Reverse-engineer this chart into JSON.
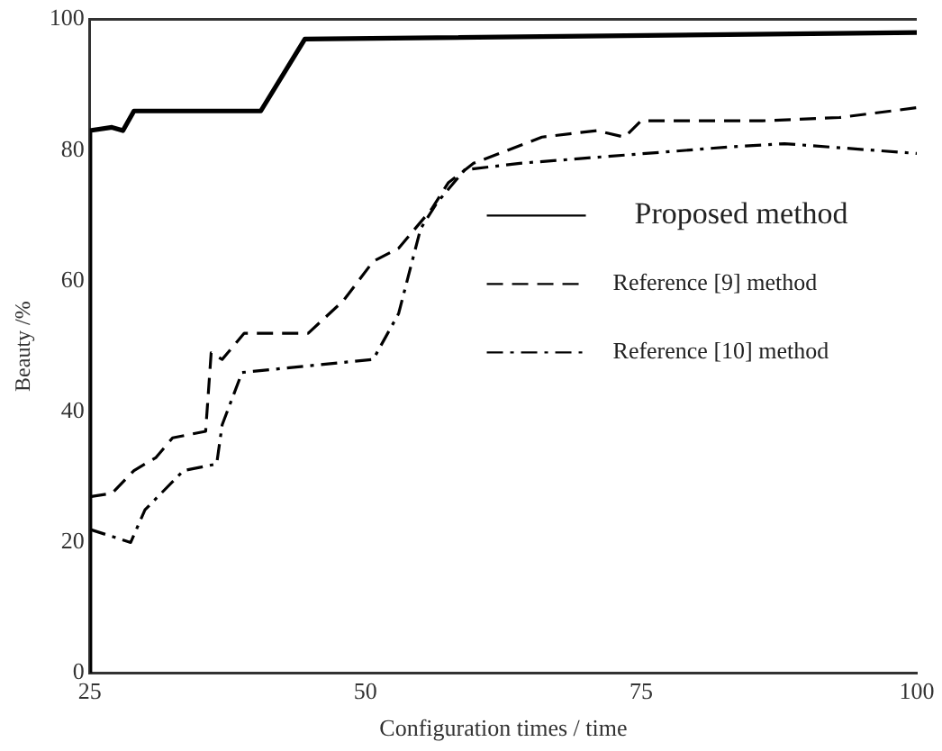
{
  "chart_data": {
    "type": "line",
    "xlabel": "Configuration times / time",
    "ylabel": "Beauty /%",
    "xlim": [
      25,
      100
    ],
    "xticks": [
      25,
      50,
      75,
      100
    ],
    "ylim": [
      0,
      100
    ],
    "yticks": [
      0,
      20,
      40,
      60,
      80,
      100
    ],
    "grid": false,
    "legend": "right",
    "marker": "none",
    "series": [
      {
        "name": "Proposed method",
        "color": "#000000",
        "line_style": "solid",
        "x": [
          25,
          25,
          27,
          28,
          29,
          40.5,
          44.5,
          100
        ],
        "values": [
          0,
          83,
          83.5,
          83,
          86,
          86,
          97,
          98
        ]
      },
      {
        "name": "Reference [9] method",
        "color": "#000000",
        "line_style": "dashed",
        "x": [
          25,
          27,
          29,
          31,
          32.5,
          35.5,
          36,
          37,
          39,
          44.8,
          48,
          50.7,
          53,
          56,
          57.5,
          59.8,
          66,
          71,
          73.5,
          75,
          86,
          93,
          100
        ],
        "values": [
          27,
          27.5,
          31,
          33,
          36,
          37,
          49,
          48,
          52,
          52,
          57,
          63,
          65,
          71,
          75,
          78,
          82,
          83,
          82,
          84.5,
          84.5,
          85,
          86.5
        ]
      },
      {
        "name": "Reference [10] method",
        "color": "#000000",
        "line_style": "dashdot",
        "x": [
          25,
          28.7,
          30,
          33.5,
          36.5,
          37,
          38.8,
          50.7,
          53,
          55,
          56.5,
          59,
          64,
          83,
          88,
          100
        ],
        "values": [
          22,
          20,
          25,
          31,
          32,
          38,
          46,
          48,
          55,
          68,
          72,
          77,
          78,
          80.5,
          81,
          79.5
        ]
      }
    ]
  }
}
